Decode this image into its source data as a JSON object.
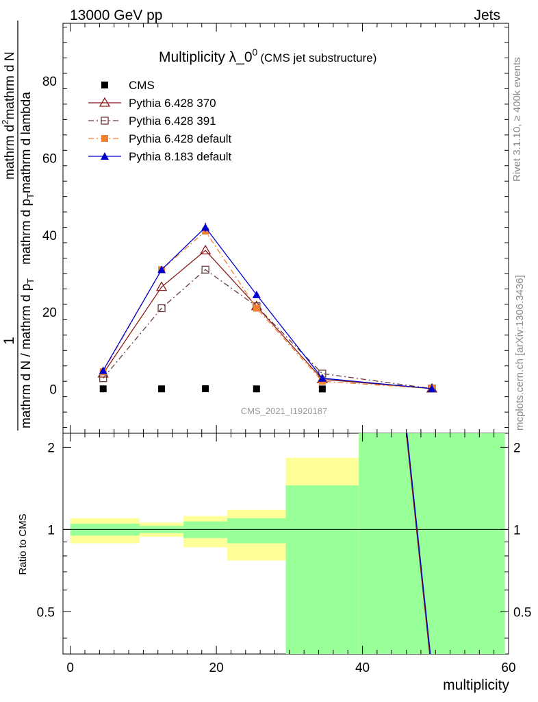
{
  "header": {
    "left": "13000 GeV pp",
    "right": "Jets"
  },
  "side_labels": {
    "rivet": "Rivet 3.1.10, ≥ 400k events",
    "mcplots": "mcplots.cern.ch [arXiv:1306.3436]"
  },
  "watermark": "CMS_2021_I1920187",
  "chart_data": {
    "type": "line",
    "title": "Multiplicity λ_0",
    "title_sup": "0",
    "title_suffix": "(CMS jet substructure)",
    "ylabel_parts": [
      "1",
      "mathrm d N / mathrm d p",
      "T",
      "mathrm d N",
      "mathrm d p",
      "T",
      "mathrm d lambda",
      "mathrm d",
      "2"
    ],
    "xlabel": "multiplicity",
    "ratio_ylabel": "Ratio to CMS",
    "xlim": [
      -1,
      60
    ],
    "ylim": [
      -11.5,
      95
    ],
    "ratio_ylim": [
      0.35,
      2.25
    ],
    "x_ticks": [
      "0",
      "20",
      "40",
      "60"
    ],
    "x_tick_values": [
      0,
      20,
      40,
      60
    ],
    "y_ticks": [
      "0",
      "20",
      "40",
      "60",
      "80"
    ],
    "y_tick_values": [
      0,
      20,
      40,
      60,
      80
    ],
    "ratio_ticks": [
      "0.5",
      "1",
      "2"
    ],
    "ratio_tick_values": [
      0.5,
      1,
      2
    ],
    "bins": [
      [
        0,
        9.5
      ],
      [
        9.5,
        15.5
      ],
      [
        15.5,
        21.5
      ],
      [
        21.5,
        29.5
      ],
      [
        29.5,
        39.5
      ],
      [
        39.5,
        59.5
      ]
    ],
    "x": [
      4.5,
      12.5,
      18.5,
      25.5,
      34.5,
      49.5
    ],
    "cms": [
      0.04,
      0.04,
      0.07,
      0.03,
      0.01,
      0.0
    ],
    "ratio_bands_yellow": [
      [
        0.89,
        1.1
      ],
      [
        0.94,
        1.06
      ],
      [
        0.86,
        1.12
      ],
      [
        0.77,
        1.18
      ],
      [
        0.63,
        1.83
      ],
      [
        0.0,
        9.0
      ]
    ],
    "ratio_bands_green": [
      [
        0.95,
        1.05
      ],
      [
        0.97,
        1.03
      ],
      [
        0.93,
        1.07
      ],
      [
        0.89,
        1.1
      ],
      [
        0.0,
        1.45
      ],
      [
        0.0,
        9.0
      ]
    ],
    "series": [
      {
        "name": "CMS",
        "color": "#000000",
        "marker": "square",
        "line": "none",
        "values": [
          0.04,
          0.04,
          0.07,
          0.03,
          0.01,
          0.0
        ]
      },
      {
        "name": "Pythia 6.428 370",
        "color": "#8b1a1a",
        "marker": "triangle-open",
        "line": "solid",
        "values": [
          4.0,
          26.5,
          36.0,
          21.5,
          2.5,
          0.1
        ]
      },
      {
        "name": "Pythia 6.428 391",
        "color": "#6b3a3a",
        "marker": "square-open",
        "line": "dashdot",
        "values": [
          2.8,
          21.0,
          31.0,
          21.5,
          4.0,
          0.1
        ]
      },
      {
        "name": "Pythia 6.428 default",
        "color": "#f08030",
        "marker": "square",
        "line": "dashdot",
        "values": [
          4.5,
          31.0,
          41.0,
          21.0,
          2.0,
          0.1
        ]
      },
      {
        "name": "Pythia 8.183 default",
        "color": "#0000cc",
        "marker": "triangle",
        "line": "solid",
        "values": [
          4.8,
          31.0,
          42.0,
          24.5,
          2.8,
          0.1
        ]
      }
    ],
    "ratio_line": {
      "x_top": 46.0,
      "x_bottom": 49.2
    }
  }
}
